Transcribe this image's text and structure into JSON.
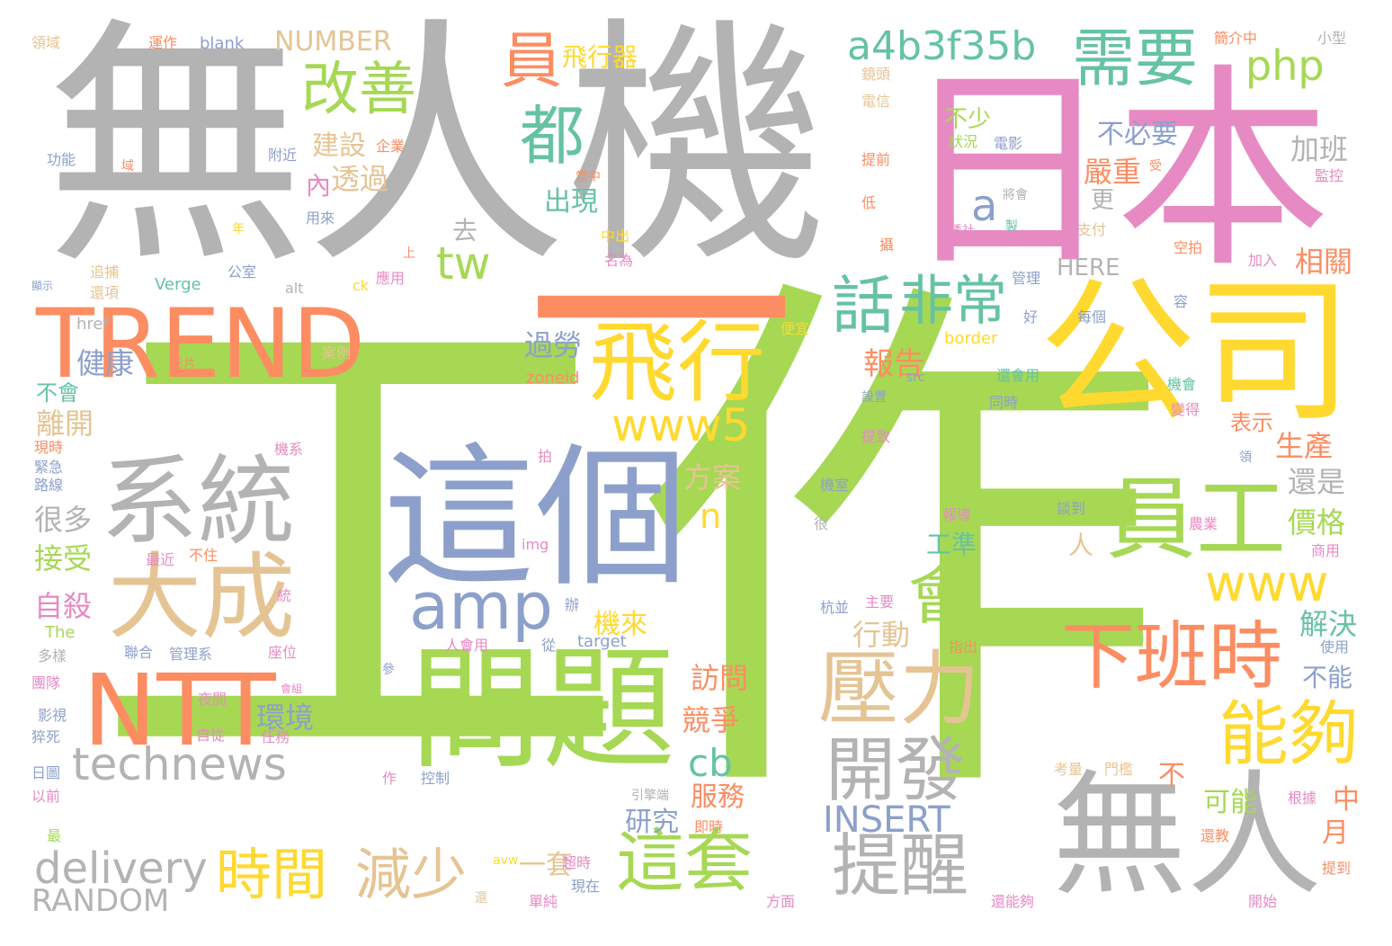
{
  "palette": {
    "gray": "#b3b3b3",
    "green": "#a6d854",
    "pink": "#e78ac3",
    "orange": "#fc8d62",
    "yellow": "#ffd92f",
    "blue": "#8da0cb",
    "teal": "#66c2a5",
    "tan": "#e5c494"
  },
  "words": [
    {
      "text": "工作",
      "color": "green"
    },
    {
      "text": "無人機",
      "color": "gray"
    },
    {
      "text": "日本",
      "color": "pink"
    },
    {
      "text": "一",
      "color": "orange"
    },
    {
      "text": "公司",
      "color": "yellow"
    },
    {
      "text": "TREND",
      "color": "orange"
    },
    {
      "text": "這個",
      "color": "blue"
    },
    {
      "text": "問題",
      "color": "green"
    },
    {
      "text": "系統",
      "color": "gray"
    },
    {
      "text": "大成",
      "color": "tan"
    },
    {
      "text": "NTT",
      "color": "orange"
    },
    {
      "text": "飛行",
      "color": "yellow"
    },
    {
      "text": "員工",
      "color": "green"
    },
    {
      "text": "無人",
      "color": "gray"
    },
    {
      "text": "壓力",
      "color": "tan"
    },
    {
      "text": "下班時",
      "color": "orange"
    },
    {
      "text": "開發",
      "color": "gray"
    },
    {
      "text": "能夠",
      "color": "yellow"
    },
    {
      "text": "需要",
      "color": "teal"
    },
    {
      "text": "改善",
      "color": "green"
    },
    {
      "text": "員",
      "color": "orange"
    },
    {
      "text": "都",
      "color": "teal"
    },
    {
      "text": "a4b3f35b",
      "color": "teal"
    },
    {
      "text": "php",
      "color": "green"
    },
    {
      "text": "話",
      "color": "teal"
    },
    {
      "text": "非常",
      "color": "teal"
    },
    {
      "text": "amp",
      "color": "blue"
    },
    {
      "text": "www5",
      "color": "yellow"
    },
    {
      "text": "technews",
      "color": "gray"
    },
    {
      "text": "會",
      "color": "green"
    },
    {
      "text": "www",
      "color": "yellow"
    },
    {
      "text": "時間",
      "color": "yellow"
    },
    {
      "text": "減少",
      "color": "tan"
    },
    {
      "text": "這套",
      "color": "green"
    },
    {
      "text": "提醒",
      "color": "gray"
    },
    {
      "text": "delivery",
      "color": "gray"
    },
    {
      "text": "RANDOM",
      "color": "gray"
    },
    {
      "text": "tw",
      "color": "green"
    },
    {
      "text": "a",
      "color": "blue"
    },
    {
      "text": "INSERT",
      "color": "blue"
    },
    {
      "text": "cb",
      "color": "teal"
    },
    {
      "text": "n",
      "color": "yellow"
    },
    {
      "text": "NUMBER",
      "color": "tan"
    },
    {
      "text": "飛行器",
      "color": "yellow"
    },
    {
      "text": "建設",
      "color": "tan"
    },
    {
      "text": "透過",
      "color": "tan"
    },
    {
      "text": "出現",
      "color": "teal"
    },
    {
      "text": "不少",
      "color": "green"
    },
    {
      "text": "不必要",
      "color": "blue"
    },
    {
      "text": "加班",
      "color": "gray"
    },
    {
      "text": "嚴重",
      "color": "orange"
    },
    {
      "text": "相關",
      "color": "orange"
    },
    {
      "text": "健康",
      "color": "blue"
    },
    {
      "text": "過勞",
      "color": "blue"
    },
    {
      "text": "報告",
      "color": "orange"
    },
    {
      "text": "離開",
      "color": "tan"
    },
    {
      "text": "生產",
      "color": "orange"
    },
    {
      "text": "還是",
      "color": "gray"
    },
    {
      "text": "方案",
      "color": "tan"
    },
    {
      "text": "很多",
      "color": "gray"
    },
    {
      "text": "價格",
      "color": "green"
    },
    {
      "text": "接受",
      "color": "green"
    },
    {
      "text": "自殺",
      "color": "pink"
    },
    {
      "text": "機來",
      "color": "yellow"
    },
    {
      "text": "行動",
      "color": "tan"
    },
    {
      "text": "解決",
      "color": "teal"
    },
    {
      "text": "環境",
      "color": "blue"
    },
    {
      "text": "訪問",
      "color": "orange"
    },
    {
      "text": "競爭",
      "color": "orange"
    },
    {
      "text": "服務",
      "color": "orange"
    },
    {
      "text": "研究",
      "color": "blue"
    },
    {
      "text": "可能",
      "color": "green"
    },
    {
      "text": "一套",
      "color": "tan"
    },
    {
      "text": "中",
      "color": "orange"
    },
    {
      "text": "月",
      "color": "orange"
    },
    {
      "text": "HERE",
      "color": "gray"
    },
    {
      "text": "工準",
      "color": "teal"
    },
    {
      "text": "表示",
      "color": "orange"
    },
    {
      "text": "不能",
      "color": "blue"
    },
    {
      "text": "大",
      "color": "green"
    },
    {
      "text": "內",
      "color": "pink"
    },
    {
      "text": "去",
      "color": "gray"
    },
    {
      "text": "人",
      "color": "tan"
    },
    {
      "text": "不",
      "color": "orange"
    },
    {
      "text": "不會",
      "color": "teal"
    },
    {
      "text": "更",
      "color": "gray"
    },
    {
      "text": "zoneid",
      "color": "orange"
    },
    {
      "text": "border",
      "color": "yellow"
    },
    {
      "text": "target",
      "color": "blue"
    },
    {
      "text": "Verge",
      "color": "teal"
    },
    {
      "text": "blank",
      "color": "blue"
    },
    {
      "text": "alt",
      "color": "gray"
    },
    {
      "text": "ck",
      "color": "yellow"
    },
    {
      "text": "href",
      "color": "gray"
    },
    {
      "text": "The",
      "color": "green"
    },
    {
      "text": "img",
      "color": "pink"
    },
    {
      "text": "src",
      "color": "blue"
    },
    {
      "text": "avw",
      "color": "yellow"
    },
    {
      "text": "領域",
      "color": "tan"
    },
    {
      "text": "運作",
      "color": "orange"
    },
    {
      "text": "功能",
      "color": "blue"
    },
    {
      "text": "域",
      "color": "orange"
    },
    {
      "text": "附近",
      "color": "blue"
    },
    {
      "text": "企業",
      "color": "orange"
    },
    {
      "text": "用來",
      "color": "blue"
    },
    {
      "text": "年",
      "color": "yellow"
    },
    {
      "text": "追捕",
      "color": "tan"
    },
    {
      "text": "還項",
      "color": "tan"
    },
    {
      "text": "公室",
      "color": "blue"
    },
    {
      "text": "應用",
      "color": "pink"
    },
    {
      "text": "上",
      "color": "orange"
    },
    {
      "text": "顯示",
      "color": "blue"
    },
    {
      "text": "鏡頭",
      "color": "tan"
    },
    {
      "text": "電信",
      "color": "tan"
    },
    {
      "text": "提前",
      "color": "orange"
    },
    {
      "text": "低",
      "color": "orange"
    },
    {
      "text": "狀況",
      "color": "green"
    },
    {
      "text": "電影",
      "color": "blue"
    },
    {
      "text": "簡介中",
      "color": "orange"
    },
    {
      "text": "小型",
      "color": "gray"
    },
    {
      "text": "監控",
      "color": "pink"
    },
    {
      "text": "受",
      "color": "orange"
    },
    {
      "text": "將會",
      "color": "gray"
    },
    {
      "text": "支付",
      "color": "tan"
    },
    {
      "text": "路透社",
      "color": "pink"
    },
    {
      "text": "製",
      "color": "teal"
    },
    {
      "text": "中出",
      "color": "yellow"
    },
    {
      "text": "名為",
      "color": "pink"
    },
    {
      "text": "空拍",
      "color": "orange"
    },
    {
      "text": "加入",
      "color": "pink"
    },
    {
      "text": "管理",
      "color": "blue"
    },
    {
      "text": "容",
      "color": "blue"
    },
    {
      "text": "好",
      "color": "blue"
    },
    {
      "text": "每個",
      "color": "blue"
    },
    {
      "text": "便宜",
      "color": "yellow"
    },
    {
      "text": "影片",
      "color": "orange"
    },
    {
      "text": "案例",
      "color": "tan"
    },
    {
      "text": "還會用",
      "color": "teal"
    },
    {
      "text": "機會",
      "color": "teal"
    },
    {
      "text": "同時",
      "color": "blue"
    },
    {
      "text": "變得",
      "color": "pink"
    },
    {
      "text": "設置",
      "color": "blue"
    },
    {
      "text": "現時",
      "color": "orange"
    },
    {
      "text": "緊急",
      "color": "blue"
    },
    {
      "text": "路線",
      "color": "blue"
    },
    {
      "text": "機系",
      "color": "pink"
    },
    {
      "text": "拍",
      "color": "pink"
    },
    {
      "text": "機室",
      "color": "blue"
    },
    {
      "text": "提致",
      "color": "pink"
    },
    {
      "text": "領",
      "color": "blue"
    },
    {
      "text": "很",
      "color": "gray"
    },
    {
      "text": "報導",
      "color": "pink"
    },
    {
      "text": "談到",
      "color": "blue"
    },
    {
      "text": "農業",
      "color": "pink"
    },
    {
      "text": "商用",
      "color": "pink"
    },
    {
      "text": "最近",
      "color": "pink"
    },
    {
      "text": "不住",
      "color": "orange"
    },
    {
      "text": "統",
      "color": "pink"
    },
    {
      "text": "杭並",
      "color": "blue"
    },
    {
      "text": "主要",
      "color": "pink"
    },
    {
      "text": "辦",
      "color": "blue"
    },
    {
      "text": "聯合",
      "color": "blue"
    },
    {
      "text": "管理系",
      "color": "blue"
    },
    {
      "text": "多樣",
      "color": "gray"
    },
    {
      "text": "座位",
      "color": "pink"
    },
    {
      "text": "指出",
      "color": "orange"
    },
    {
      "text": "使用",
      "color": "blue"
    },
    {
      "text": "團隊",
      "color": "pink"
    },
    {
      "text": "參",
      "color": "blue"
    },
    {
      "text": "人會用",
      "color": "pink"
    },
    {
      "text": "從",
      "color": "blue"
    },
    {
      "text": "夜間",
      "color": "pink"
    },
    {
      "text": "會組",
      "color": "pink"
    },
    {
      "text": "影視",
      "color": "blue"
    },
    {
      "text": "自從",
      "color": "pink"
    },
    {
      "text": "任務",
      "color": "pink"
    },
    {
      "text": "猝死",
      "color": "blue"
    },
    {
      "text": "日圖",
      "color": "blue"
    },
    {
      "text": "以前",
      "color": "pink"
    },
    {
      "text": "作",
      "color": "pink"
    },
    {
      "text": "控制",
      "color": "blue"
    },
    {
      "text": "引擎端",
      "color": "gray"
    },
    {
      "text": "考量",
      "color": "tan"
    },
    {
      "text": "門檻",
      "color": "tan"
    },
    {
      "text": "根據",
      "color": "pink"
    },
    {
      "text": "即時",
      "color": "orange"
    },
    {
      "text": "最",
      "color": "green"
    },
    {
      "text": "超時",
      "color": "pink"
    },
    {
      "text": "現在",
      "color": "blue"
    },
    {
      "text": "單純",
      "color": "pink"
    },
    {
      "text": "還",
      "color": "tan"
    },
    {
      "text": "方面",
      "color": "pink"
    },
    {
      "text": "還能夠",
      "color": "pink"
    },
    {
      "text": "開始",
      "color": "pink"
    },
    {
      "text": "還教",
      "color": "orange"
    },
    {
      "text": "提到",
      "color": "orange"
    },
    {
      "text": "攝",
      "color": "orange"
    },
    {
      "text": "當中",
      "color": "orange"
    }
  ]
}
